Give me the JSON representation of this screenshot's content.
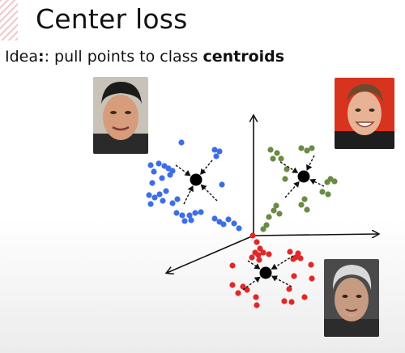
{
  "slide": {
    "title": "Center loss",
    "subtitle_prefix": "Idea",
    "subtitle_middle": ": pull points to class ",
    "subtitle_bold": "centroids"
  },
  "clusters": [
    {
      "name": "blue",
      "color": "#3d6ee8"
    },
    {
      "name": "green",
      "color": "#6a8a45"
    },
    {
      "name": "red",
      "color": "#e02828"
    }
  ],
  "icons": [
    "face-photo-icon",
    "face-photo-icon",
    "face-photo-icon"
  ]
}
